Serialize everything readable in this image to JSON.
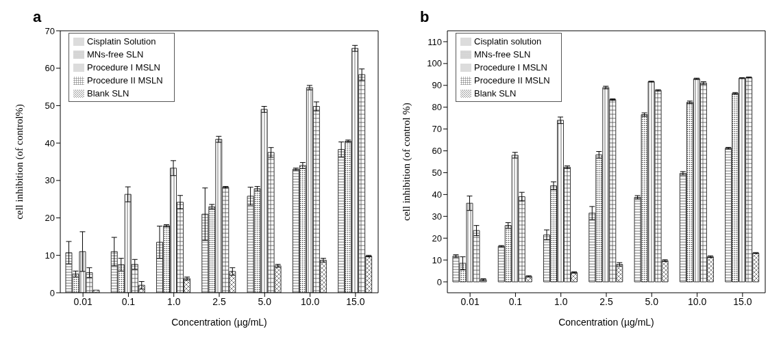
{
  "chart_data": [
    {
      "type": "bar",
      "title": "a",
      "xlabel": "Concentration (µg/mL)",
      "ylabel": "cell inhibition (of control%)",
      "categories": [
        "0.01",
        "0.1",
        "1.0",
        "2.5",
        "5.0",
        "10.0",
        "15.0"
      ],
      "ylim": [
        0,
        70
      ],
      "yticks": [
        0,
        10,
        20,
        30,
        40,
        50,
        60,
        70
      ],
      "legend": "top left",
      "series": [
        {
          "name": "Cisplatin Solution",
          "color": "#333333",
          "values": [
            10.7,
            11,
            13.5,
            21,
            25.8,
            33,
            38.3
          ],
          "errors": [
            3,
            3.8,
            4.3,
            7,
            2.4,
            0.3,
            2
          ]
        },
        {
          "name": "MNs-free SLN",
          "color": "#333333",
          "values": [
            5,
            7.5,
            17.9,
            23,
            27.8,
            34,
            40.5
          ],
          "errors": [
            0.8,
            1.7,
            0.3,
            0.6,
            0.6,
            0.8,
            0.3
          ]
        },
        {
          "name": "Procedure I MSLN",
          "color": "#333333",
          "values": [
            11,
            26.3,
            33.3,
            41,
            49,
            54.8,
            65.3
          ],
          "errors": [
            5.3,
            2,
            2,
            0.8,
            0.8,
            0.6,
            0.8
          ]
        },
        {
          "name": "Procedure II MSLN",
          "color": "#333333",
          "values": [
            5.4,
            7.6,
            24.2,
            28.2,
            37.5,
            49.8,
            58.3
          ],
          "errors": [
            1.3,
            1.3,
            1.8,
            0.2,
            1.3,
            1.2,
            1.5
          ]
        },
        {
          "name": "Blank SLN",
          "color": "#333333",
          "values": [
            0.7,
            2,
            3.8,
            5.7,
            7.2,
            8.7,
            9.8
          ],
          "errors": [
            null,
            1,
            0.4,
            1,
            0.4,
            0.5,
            0.2
          ]
        }
      ]
    },
    {
      "type": "bar",
      "title": "b",
      "xlabel": "Concentration (µg/mL)",
      "ylabel": "cell inhibition (of control %)",
      "categories": [
        "0.01",
        "0.1",
        "1.0",
        "2.5",
        "5.0",
        "10.0",
        "15.0"
      ],
      "ylim": [
        -5,
        115
      ],
      "yticks": [
        0,
        10,
        20,
        30,
        40,
        50,
        60,
        70,
        80,
        90,
        100,
        110
      ],
      "legend": "top left",
      "series": [
        {
          "name": "Cisplatin solution",
          "color": "#333333",
          "values": [
            11.8,
            16.3,
            21.5,
            31.5,
            38.7,
            49.7,
            61.2
          ],
          "errors": [
            0.6,
            0.3,
            2.3,
            3,
            0.8,
            0.8,
            0.4
          ]
        },
        {
          "name": "MNs-free SLN",
          "color": "#333333",
          "values": [
            8.5,
            25.8,
            44,
            58.2,
            76.6,
            82.2,
            86.3
          ],
          "errors": [
            3,
            1.3,
            1.8,
            1.5,
            0.8,
            0.6,
            0.4
          ]
        },
        {
          "name": "Procedure I MSLN",
          "color": "#333333",
          "values": [
            36,
            58,
            74,
            89,
            91.7,
            93,
            93.3
          ],
          "errors": [
            3.3,
            1.3,
            1.5,
            0.6,
            0.2,
            0.3,
            0.2
          ]
        },
        {
          "name": "Procedure II MSLN",
          "color": "#333333",
          "values": [
            23.5,
            39,
            52.5,
            83.5,
            87.7,
            91.1,
            93.6
          ],
          "errors": [
            2.3,
            2,
            0.6,
            0.3,
            0.3,
            0.6,
            0.2
          ]
        },
        {
          "name": "Blank SLN",
          "color": "#333333",
          "values": [
            1,
            2.5,
            4.3,
            8,
            9.7,
            11.5,
            13.2
          ],
          "errors": [
            0.4,
            0.3,
            0.3,
            0.8,
            0.4,
            0.4,
            0.2
          ]
        }
      ]
    }
  ]
}
